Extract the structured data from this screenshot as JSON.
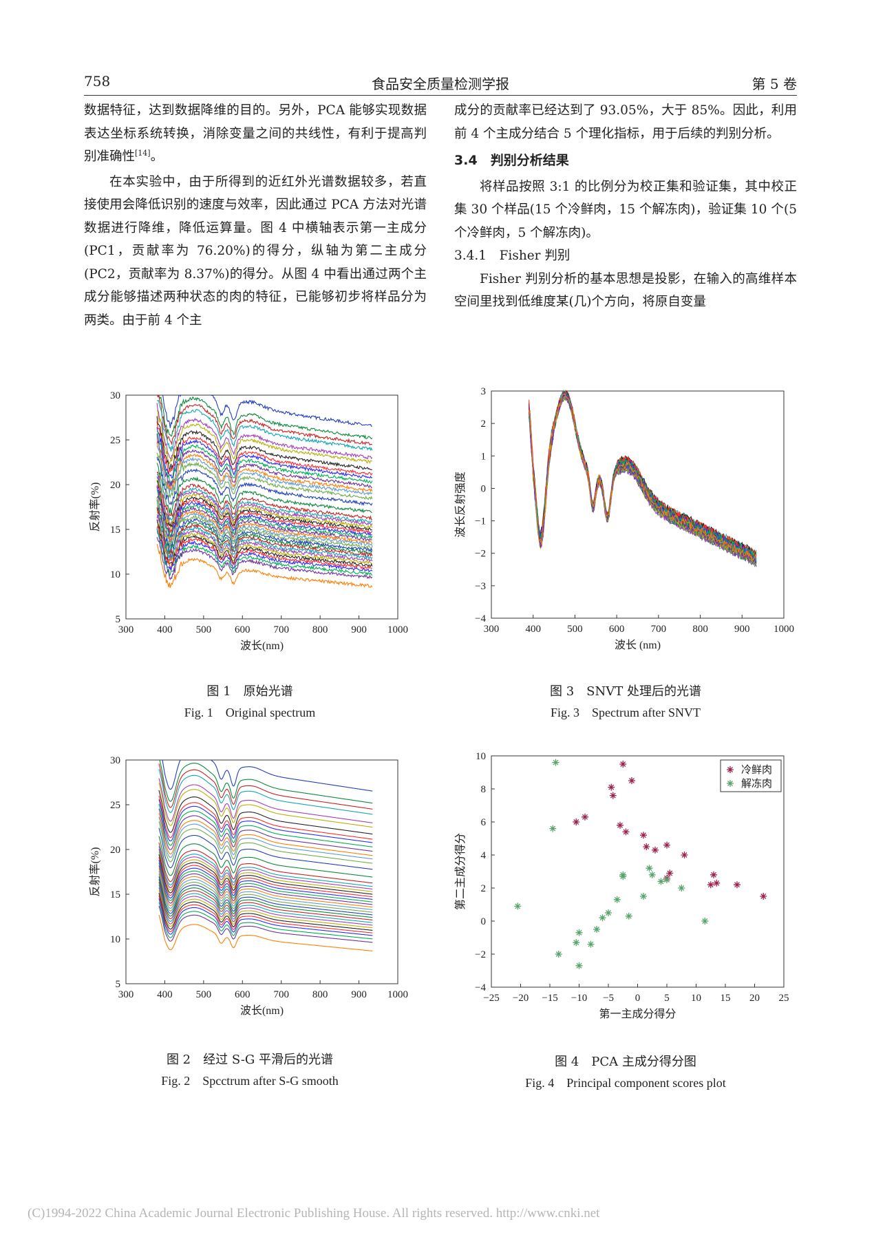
{
  "header": {
    "page_number": "758",
    "journal": "食品安全质量检测学报",
    "volume": "第 5 卷"
  },
  "left_col": {
    "p1": "数据特征，达到数据降维的目的。另外，PCA 能够实现数据表达坐标系统转换，消除变量之间的共线性，有利于提高判别准确性",
    "p1_ref": "[14]",
    "p1_end": "。",
    "p2": "在本实验中，由于所得到的近红外光谱数据较多，若直接使用会降低识别的速度与效率，因此通过 PCA 方法对光谱数据进行降维，降低运算量。图 4 中横轴表示第一主成分(PC1，贡献率为 76.20%)的得分，纵轴为第二主成分(PC2，贡献率为 8.37%)的得分。从图 4 中看出通过两个主成分能够描述两种状态的肉的特征，已能够初步将样品分为两类。由于前 4 个主"
  },
  "right_col": {
    "p1": "成分的贡献率已经达到了 93.05%，大于 85%。因此，利用前 4 个主成分结合 5 个理化指标，用于后续的判别分析。",
    "section_num": "3.4",
    "section_title": "判别分析结果",
    "p2": "将样品按照 3:1 的比例分为校正集和验证集，其中校正集 30 个样品(15 个冷鲜肉，15 个解冻肉)，验证集 10 个(5 个冷鲜肉，5 个解冻肉)。",
    "subsection": "3.4.1　Fisher 判别",
    "p3": "Fisher 判别分析的基本思想是投影，在输入的高维样本空间里找到低维度某(几)个方向，将原自变量"
  },
  "figures": {
    "fig1": {
      "cap_cn": "图 1　原始光谱",
      "cap_en": "Fig. 1　Original spectrum"
    },
    "fig2": {
      "cap_cn": "图 2　经过 S-G 平滑后的光谱",
      "cap_en": "Fig. 2　Spcctrum after S-G smooth"
    },
    "fig3": {
      "cap_cn": "图 3　SNVT 处理后的光谱",
      "cap_en": "Fig. 3　Spectrum after SNVT"
    },
    "fig4": {
      "cap_cn": "图 4　PCA 主成分得分图",
      "cap_en": "Fig. 4　Principal component scores plot"
    }
  },
  "chart_data": [
    {
      "id": "fig1",
      "type": "line",
      "xlabel": "波长(nm)",
      "ylabel": "反射率(%)",
      "xlim": [
        300,
        1000
      ],
      "ylim": [
        5,
        30
      ],
      "xticks": [
        300,
        400,
        500,
        600,
        700,
        800,
        900,
        1000
      ],
      "yticks": [
        5,
        10,
        15,
        20,
        25,
        30
      ],
      "x_range_data": [
        380,
        935
      ],
      "series_count": 40,
      "series_offsets": [
        28.6,
        27.2,
        26.5,
        25.9,
        24.9,
        24.4,
        23.6,
        23.0,
        22.6,
        22.1,
        21.6,
        21.1,
        20.7,
        20.2,
        19.5,
        18.6,
        17.9,
        17.5,
        17.2,
        16.9,
        16.6,
        16.3,
        16.0,
        15.7,
        15.4,
        15.1,
        14.8,
        14.5,
        14.2,
        13.9,
        13.6,
        13.3,
        13.0,
        12.7,
        12.4,
        12.1,
        11.8,
        11.4,
        11.0,
        10.0
      ],
      "grid": false
    },
    {
      "id": "fig2",
      "type": "line",
      "xlabel": "波长(nm)",
      "ylabel": "反射率(%)",
      "xlim": [
        300,
        1000
      ],
      "ylim": [
        5,
        30
      ],
      "xticks": [
        300,
        400,
        500,
        600,
        700,
        800,
        900,
        1000
      ],
      "yticks": [
        5,
        10,
        15,
        20,
        25,
        30
      ],
      "x_range_data": [
        385,
        935
      ],
      "series_count": 40,
      "series_offsets": [
        28.6,
        27.2,
        26.5,
        25.9,
        24.9,
        24.4,
        23.6,
        23.0,
        22.6,
        22.1,
        21.6,
        21.1,
        20.7,
        20.2,
        19.5,
        18.6,
        17.9,
        17.5,
        17.2,
        16.9,
        16.6,
        16.3,
        16.0,
        15.7,
        15.4,
        15.1,
        14.8,
        14.5,
        14.2,
        13.9,
        13.6,
        13.3,
        13.0,
        12.7,
        12.4,
        12.1,
        11.8,
        11.4,
        11.0,
        10.0
      ],
      "grid": false
    },
    {
      "id": "fig3",
      "type": "line",
      "xlabel": "波长 (nm)",
      "ylabel": "波长反射强度",
      "xlim": [
        300,
        1000
      ],
      "ylim": [
        -4,
        3
      ],
      "xticks": [
        300,
        400,
        500,
        600,
        700,
        800,
        900,
        1000
      ],
      "yticks": [
        -4,
        -3,
        -2,
        -1,
        0,
        1,
        2,
        3
      ],
      "x_range_data": [
        390,
        935
      ],
      "series_count": 40,
      "grid": false
    },
    {
      "id": "fig4",
      "type": "scatter",
      "xlabel": "第一主成分得分",
      "ylabel": "第二主成分得分",
      "xlim": [
        -25,
        25
      ],
      "ylim": [
        -4,
        10
      ],
      "xticks": [
        -25,
        -20,
        -15,
        -10,
        -5,
        0,
        5,
        10,
        15,
        20,
        25
      ],
      "yticks": [
        -4,
        -2,
        0,
        2,
        4,
        6,
        8,
        10
      ],
      "legend_position": "top-right",
      "series": [
        {
          "name": "冷鲜肉",
          "color": "#a0204a",
          "x": [
            -2.5,
            -4.5,
            -4.2,
            -1.0,
            -10.5,
            -9.0,
            -3.0,
            -2.0,
            1.0,
            1.5,
            3.0,
            5.0,
            8.0,
            5.5,
            5.0,
            13.0,
            12.5,
            13.5,
            17.0,
            21.5
          ],
          "y": [
            9.5,
            8.1,
            7.6,
            8.5,
            6.0,
            6.3,
            5.8,
            5.4,
            5.2,
            4.5,
            4.3,
            4.6,
            4.0,
            2.9,
            2.6,
            2.8,
            2.2,
            2.3,
            2.2,
            1.5
          ]
        },
        {
          "name": "解冻肉",
          "color": "#55a56a",
          "x": [
            -14.0,
            -14.5,
            -20.5,
            -2.5,
            -2.5,
            2.0,
            2.5,
            5.0,
            4.0,
            1.0,
            7.5,
            11.5,
            -3.5,
            -5.0,
            -6.0,
            -1.5,
            -7.0,
            -10.0,
            -10.5,
            -8.0,
            -10.0,
            -13.5
          ],
          "y": [
            9.6,
            5.6,
            0.9,
            2.8,
            2.7,
            3.2,
            2.8,
            2.5,
            2.4,
            1.5,
            2.0,
            0.0,
            1.3,
            0.5,
            0.2,
            0.3,
            -0.5,
            -0.7,
            -1.3,
            -1.4,
            -2.7,
            -2.0
          ]
        }
      ]
    }
  ],
  "footer": "(C)1994-2022 China Academic Journal Electronic Publishing House. All rights reserved.    http://www.cnki.net"
}
